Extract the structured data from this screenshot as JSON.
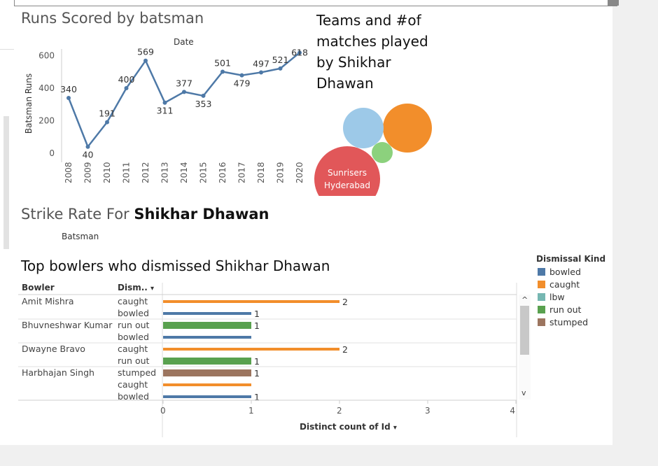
{
  "line_chart": {
    "title": "Runs Scored by batsman",
    "header": "Date",
    "ylabel": "Batsman Runs"
  },
  "bubble_chart": {
    "title_lines": [
      "Teams and #of",
      "matches played",
      "by Shikhar",
      "Dhawan"
    ],
    "label_lines": [
      "Sunrisers",
      "Hyderabad"
    ]
  },
  "strike_rate": {
    "title_prefix": "Strike Rate For ",
    "title_name": "Shikhar Dhawan",
    "header": "Batsman"
  },
  "bar_chart": {
    "title": "Top bowlers who dismissed Shikhar Dhawan",
    "col_bowler": "Bowler",
    "col_dismissal": "Dism..",
    "xlabel": "Distinct count of Id",
    "sort_glyph": "▾"
  },
  "legend": {
    "title": "Dismissal Kind",
    "items": [
      {
        "label": "bowled",
        "color": "#4e79a7"
      },
      {
        "label": "caught",
        "color": "#f28e2b"
      },
      {
        "label": "lbw",
        "color": "#76b7b2"
      },
      {
        "label": "run out",
        "color": "#59a14f"
      },
      {
        "label": "stumped",
        "color": "#9c755f"
      }
    ]
  },
  "scrollbar": {
    "up": "^",
    "down": "v"
  },
  "chart_data": [
    {
      "type": "line",
      "title": "Runs Scored by batsman",
      "xlabel": "Date",
      "ylabel": "Batsman Runs",
      "x": [
        "2008",
        "2009",
        "2010",
        "2011",
        "2012",
        "2013",
        "2014",
        "2015",
        "2016",
        "2017",
        "2018",
        "2019",
        "2020"
      ],
      "values": [
        340,
        40,
        191,
        400,
        569,
        311,
        377,
        353,
        501,
        479,
        497,
        521,
        618
      ],
      "yticks": [
        0,
        200,
        400,
        600
      ],
      "ylim": [
        0,
        640
      ],
      "color": "#4e79a7",
      "grid": false
    },
    {
      "type": "bubble",
      "title": "Teams and #of matches played by Shikhar Dhawan",
      "bubbles": [
        {
          "label": "Sunrisers Hyderabad",
          "color": "#e15759"
        },
        {
          "label": "",
          "color": "#f28e2b"
        },
        {
          "label": "",
          "color": "#9dc9e8"
        },
        {
          "label": "",
          "color": "#8cd17d"
        }
      ]
    },
    {
      "type": "bar",
      "orientation": "horizontal",
      "title": "Top bowlers who dismissed Shikhar Dhawan",
      "xlabel": "Distinct count of Id",
      "xticks": [
        0,
        1,
        2,
        3,
        4
      ],
      "xlim": [
        0,
        4
      ],
      "groups": [
        {
          "bowler": "Amit Mishra",
          "rows": [
            {
              "kind": "caught",
              "value": 2
            },
            {
              "kind": "bowled",
              "value": 1
            }
          ]
        },
        {
          "bowler": "Bhuvneshwar Kumar",
          "rows": [
            {
              "kind": "run out",
              "value": 1
            },
            {
              "kind": "bowled",
              "value": 1
            }
          ]
        },
        {
          "bowler": "Dwayne Bravo",
          "rows": [
            {
              "kind": "caught",
              "value": 2
            },
            {
              "kind": "run out",
              "value": 1
            }
          ]
        },
        {
          "bowler": "Harbhajan Singh",
          "rows": [
            {
              "kind": "stumped",
              "value": 1
            },
            {
              "kind": "caught",
              "value": 1
            },
            {
              "kind": "bowled",
              "value": 1
            }
          ]
        }
      ],
      "labels_shown": [
        2,
        1,
        1,
        null,
        2,
        1,
        1,
        null,
        1
      ]
    }
  ]
}
